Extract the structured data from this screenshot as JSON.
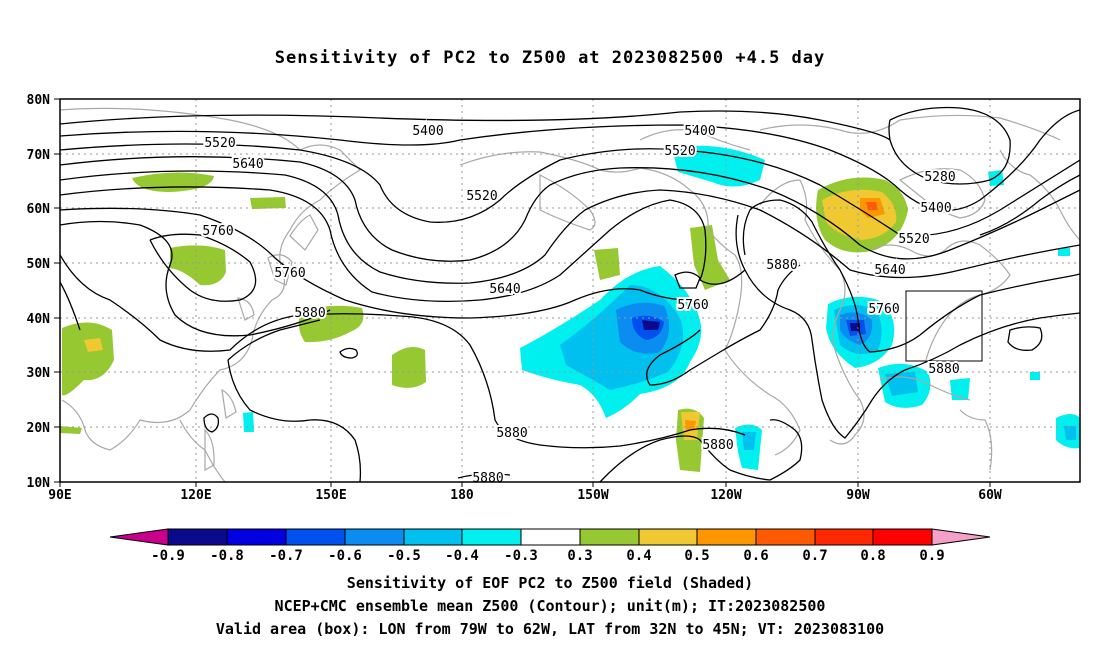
{
  "title": "Sensitivity of PC2 to Z500 at 2023082500 +4.5 day",
  "map": {
    "lon_labels": [
      "90E",
      "120E",
      "150E",
      "180",
      "150W",
      "120W",
      "90W",
      "60W"
    ],
    "lat_labels": [
      "80N",
      "70N",
      "60N",
      "50N",
      "40N",
      "30N",
      "20N",
      "10N"
    ],
    "coastline_color": "#a8a8a8",
    "contour_color": "#000000",
    "grid": "dotted",
    "contour_labels": [
      {
        "text": "5520"
      },
      {
        "text": "5640"
      },
      {
        "text": "5760"
      },
      {
        "text": "5760"
      },
      {
        "text": "5880"
      },
      {
        "text": "5400"
      },
      {
        "text": "5520"
      },
      {
        "text": "5640"
      },
      {
        "text": "5400"
      },
      {
        "text": "5520"
      },
      {
        "text": "5880"
      },
      {
        "text": "5760"
      },
      {
        "text": "5880"
      },
      {
        "text": "5760"
      },
      {
        "text": "5280"
      },
      {
        "text": "5400"
      },
      {
        "text": "5520"
      },
      {
        "text": "5640"
      },
      {
        "text": "5880"
      },
      {
        "text": "5880"
      },
      {
        "text": "5880"
      }
    ]
  },
  "colorbar": {
    "labels": [
      "-0.9",
      "-0.8",
      "-0.7",
      "-0.6",
      "-0.5",
      "-0.4",
      "-0.3",
      "0.3",
      "0.4",
      "0.5",
      "0.6",
      "0.7",
      "0.8",
      "0.9"
    ],
    "colors": [
      "#0a0a8c",
      "#0000e0",
      "#0050f0",
      "#0a8cf0",
      "#00c0f0",
      "#00f0f0",
      "#ffffff",
      "#96c832",
      "#f0c832",
      "#ff9600",
      "#ff5a00",
      "#ff2800",
      "#ff0000"
    ],
    "left_tip_color": "#c8008c",
    "right_tip_color": "#f5a0c8"
  },
  "captions": {
    "line1": "Sensitivity of EOF PC2 to Z500 field (Shaded)",
    "line2": "NCEP+CMC ensemble mean Z500 (Contour); unit(m); IT:2023082500",
    "line3": "Valid area (box): LON from 79W to 62W, LAT from 32N to 45N; VT: 2023083100"
  }
}
